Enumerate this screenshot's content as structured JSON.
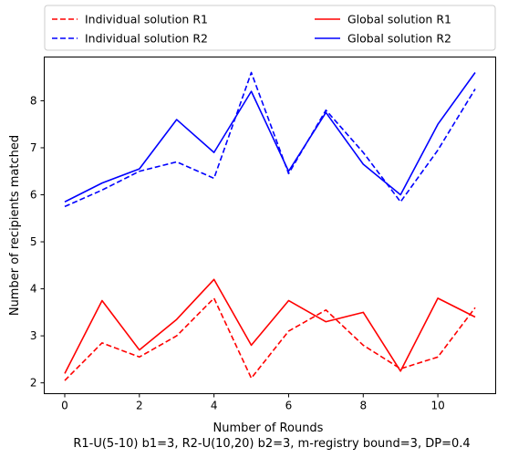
{
  "chart_data": {
    "type": "line",
    "xlabel": "Number of Rounds",
    "ylabel": "Number of recipients matched",
    "caption": "R1-U(5-10) b1=3, R2-U(10,20) b2=3, m-registry bound=3, DP=0.4",
    "x": [
      0,
      1,
      2,
      3,
      4,
      5,
      6,
      7,
      8,
      9,
      10,
      11
    ],
    "xlim": [
      -0.55,
      11.55
    ],
    "ylim": [
      1.77,
      8.93
    ],
    "xticks": [
      0,
      2,
      4,
      6,
      8,
      10
    ],
    "yticks": [
      2,
      3,
      4,
      5,
      6,
      7,
      8
    ],
    "legend_position": "top, outside plot, two columns",
    "series": [
      {
        "name": "Individual solution R1",
        "color": "#ff0000",
        "style": "dashed",
        "values": [
          2.05,
          2.85,
          2.55,
          3.0,
          3.8,
          2.1,
          3.1,
          3.55,
          2.8,
          2.3,
          2.55,
          3.6
        ]
      },
      {
        "name": "Individual solution R2",
        "color": "#0000ff",
        "style": "dashed",
        "values": [
          5.75,
          6.1,
          6.5,
          6.7,
          6.35,
          8.6,
          6.45,
          7.8,
          6.9,
          5.85,
          6.95,
          8.25
        ]
      },
      {
        "name": "Global solution R1",
        "color": "#ff0000",
        "style": "solid",
        "values": [
          2.2,
          3.75,
          2.7,
          3.35,
          4.2,
          2.8,
          3.75,
          3.3,
          3.5,
          2.25,
          3.8,
          3.4
        ]
      },
      {
        "name": "Global solution R2",
        "color": "#0000ff",
        "style": "solid",
        "values": [
          5.85,
          6.25,
          6.55,
          7.6,
          6.9,
          8.2,
          6.5,
          7.75,
          6.65,
          6.0,
          7.5,
          8.6
        ]
      }
    ]
  }
}
